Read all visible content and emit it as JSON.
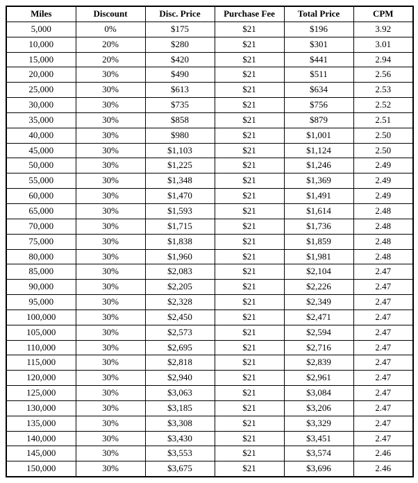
{
  "table": {
    "columns": [
      "Miles",
      "Discount",
      "Disc. Price",
      "Purchase Fee",
      "Total Price",
      "CPM"
    ],
    "rows": [
      [
        "5,000",
        "0%",
        "$175",
        "$21",
        "$196",
        "3.92"
      ],
      [
        "10,000",
        "20%",
        "$280",
        "$21",
        "$301",
        "3.01"
      ],
      [
        "15,000",
        "20%",
        "$420",
        "$21",
        "$441",
        "2.94"
      ],
      [
        "20,000",
        "30%",
        "$490",
        "$21",
        "$511",
        "2.56"
      ],
      [
        "25,000",
        "30%",
        "$613",
        "$21",
        "$634",
        "2.53"
      ],
      [
        "30,000",
        "30%",
        "$735",
        "$21",
        "$756",
        "2.52"
      ],
      [
        "35,000",
        "30%",
        "$858",
        "$21",
        "$879",
        "2.51"
      ],
      [
        "40,000",
        "30%",
        "$980",
        "$21",
        "$1,001",
        "2.50"
      ],
      [
        "45,000",
        "30%",
        "$1,103",
        "$21",
        "$1,124",
        "2.50"
      ],
      [
        "50,000",
        "30%",
        "$1,225",
        "$21",
        "$1,246",
        "2.49"
      ],
      [
        "55,000",
        "30%",
        "$1,348",
        "$21",
        "$1,369",
        "2.49"
      ],
      [
        "60,000",
        "30%",
        "$1,470",
        "$21",
        "$1,491",
        "2.49"
      ],
      [
        "65,000",
        "30%",
        "$1,593",
        "$21",
        "$1,614",
        "2.48"
      ],
      [
        "70,000",
        "30%",
        "$1,715",
        "$21",
        "$1,736",
        "2.48"
      ],
      [
        "75,000",
        "30%",
        "$1,838",
        "$21",
        "$1,859",
        "2.48"
      ],
      [
        "80,000",
        "30%",
        "$1,960",
        "$21",
        "$1,981",
        "2.48"
      ],
      [
        "85,000",
        "30%",
        "$2,083",
        "$21",
        "$2,104",
        "2.47"
      ],
      [
        "90,000",
        "30%",
        "$2,205",
        "$21",
        "$2,226",
        "2.47"
      ],
      [
        "95,000",
        "30%",
        "$2,328",
        "$21",
        "$2,349",
        "2.47"
      ],
      [
        "100,000",
        "30%",
        "$2,450",
        "$21",
        "$2,471",
        "2.47"
      ],
      [
        "105,000",
        "30%",
        "$2,573",
        "$21",
        "$2,594",
        "2.47"
      ],
      [
        "110,000",
        "30%",
        "$2,695",
        "$21",
        "$2,716",
        "2.47"
      ],
      [
        "115,000",
        "30%",
        "$2,818",
        "$21",
        "$2,839",
        "2.47"
      ],
      [
        "120,000",
        "30%",
        "$2,940",
        "$21",
        "$2,961",
        "2.47"
      ],
      [
        "125,000",
        "30%",
        "$3,063",
        "$21",
        "$3,084",
        "2.47"
      ],
      [
        "130,000",
        "30%",
        "$3,185",
        "$21",
        "$3,206",
        "2.47"
      ],
      [
        "135,000",
        "30%",
        "$3,308",
        "$21",
        "$3,329",
        "2.47"
      ],
      [
        "140,000",
        "30%",
        "$3,430",
        "$21",
        "$3,451",
        "2.47"
      ],
      [
        "145,000",
        "30%",
        "$3,553",
        "$21",
        "$3,574",
        "2.46"
      ],
      [
        "150,000",
        "30%",
        "$3,675",
        "$21",
        "$3,696",
        "2.46"
      ]
    ],
    "border_color": "#000000",
    "background_color": "#ffffff",
    "font_family": "Georgia, Times New Roman, serif",
    "header_font_weight": "bold",
    "cell_font_size": 13,
    "text_align": "center"
  }
}
